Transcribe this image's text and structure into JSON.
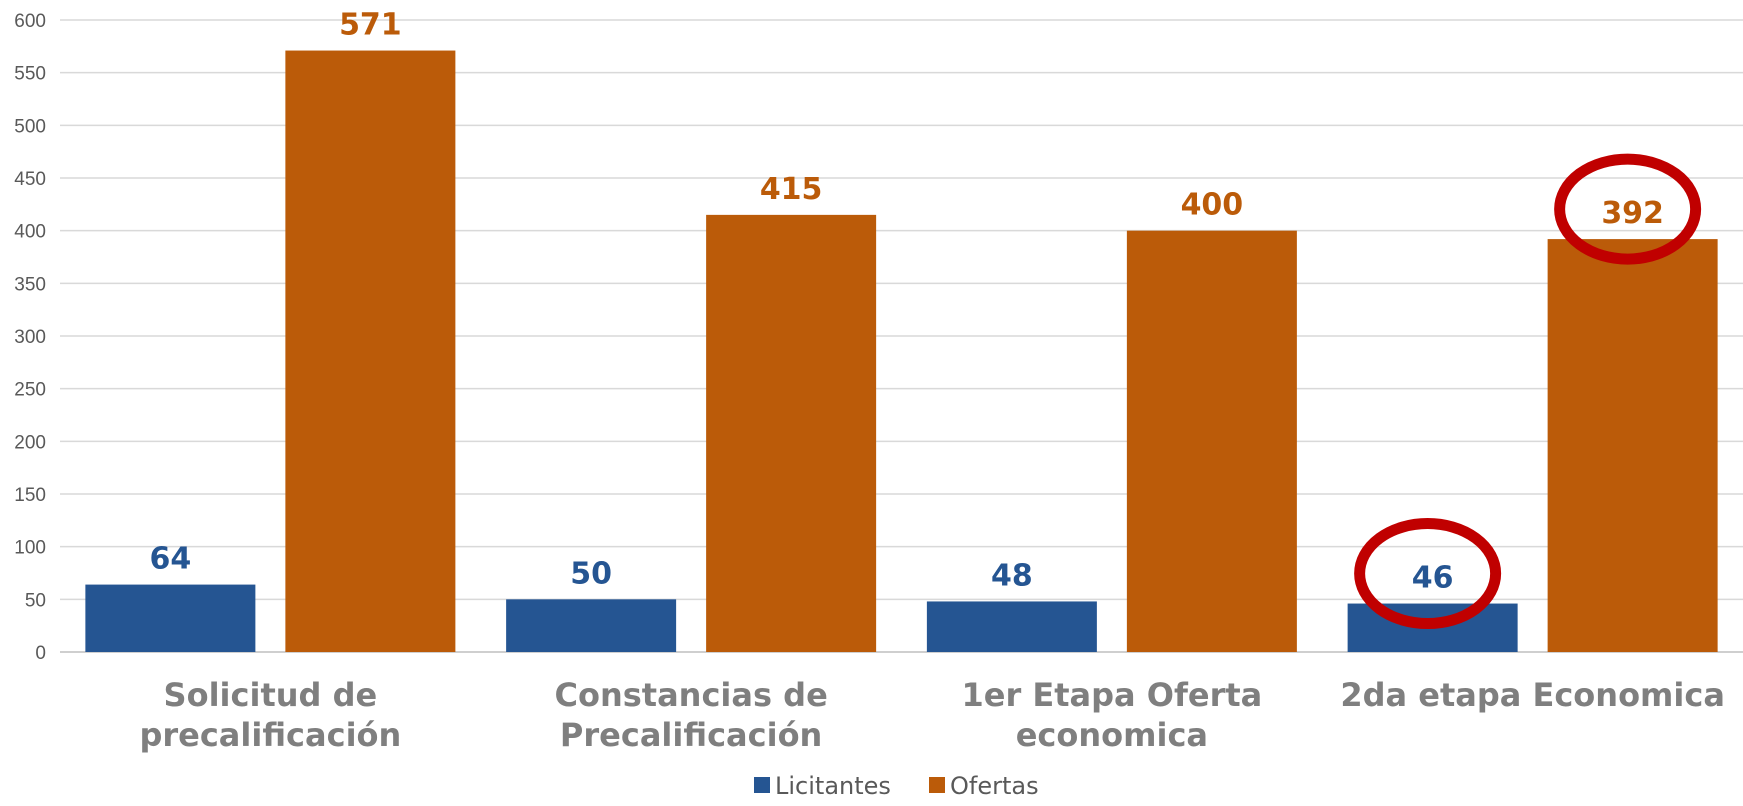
{
  "chart_data": {
    "type": "bar",
    "categories": [
      [
        "Solicitud de",
        "precalificación"
      ],
      [
        "Constancias de",
        "Precalificación"
      ],
      [
        "1er Etapa Oferta",
        "economica"
      ],
      [
        "2da etapa Economica"
      ]
    ],
    "series": [
      {
        "name": "Licitantes",
        "values": [
          64,
          50,
          48,
          46
        ],
        "color": "#255592"
      },
      {
        "name": "Ofertas",
        "values": [
          571,
          415,
          400,
          392
        ],
        "color": "#bb5b09"
      }
    ],
    "ylim": [
      0,
      600
    ],
    "yticks": [
      "0",
      "50",
      "100",
      "150",
      "200",
      "250",
      "300",
      "350",
      "400",
      "450",
      "500",
      "550",
      "600"
    ],
    "grid": true,
    "legend": "bottom-center",
    "highlighted_labels": [
      {
        "series": "Licitantes",
        "category_index": 3,
        "color": "#c00000"
      },
      {
        "series": "Ofertas",
        "category_index": 3,
        "color": "#c00000"
      }
    ]
  }
}
